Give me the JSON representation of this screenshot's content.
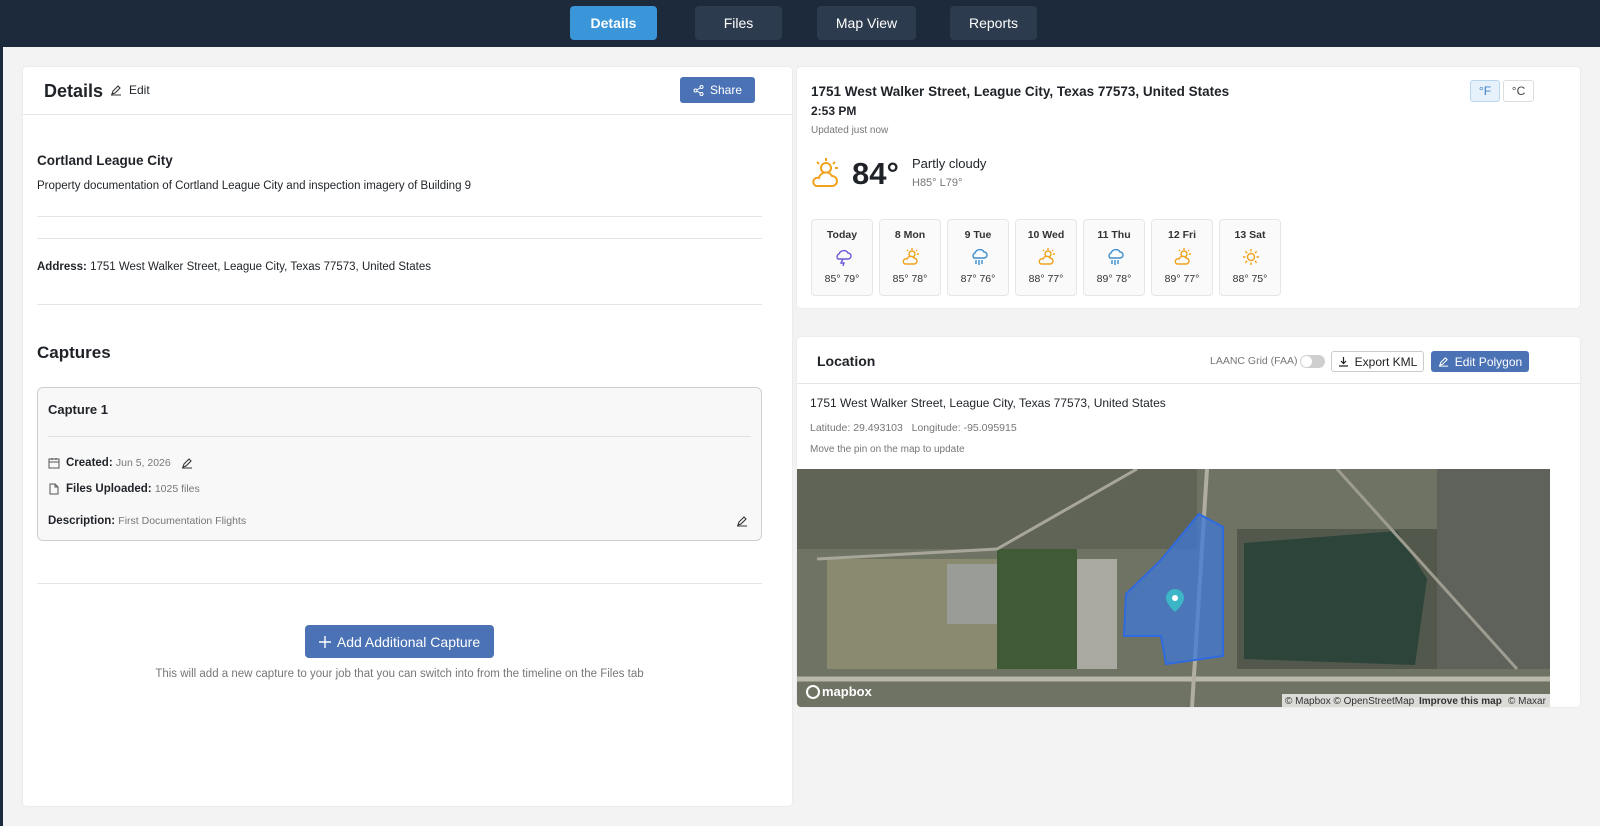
{
  "nav": {
    "tabs": [
      "Details",
      "Files",
      "Map View",
      "Reports"
    ]
  },
  "details": {
    "title": "Details",
    "edit": "Edit",
    "share": "Share",
    "project_name": "Cortland League City",
    "project_description": "Property documentation of Cortland League City and inspection imagery of Building 9",
    "address_label": "Address:",
    "address": "1751 West Walker Street, League City, Texas 77573, United States",
    "captures_title": "Captures",
    "capture": {
      "title": "Capture 1",
      "created_label": "Created:",
      "created": "Jun 5, 2026",
      "files_label": "Files Uploaded:",
      "files": "1025 files",
      "description_label": "Description:",
      "description": "First Documentation Flights"
    },
    "add_button": "Add Additional Capture",
    "add_hint": "This will add a new capture to your job that you can switch into from the timeline on the Files tab"
  },
  "weather": {
    "address": "1751 West Walker Street, League City, Texas 77573, United States",
    "time": "2:53 PM",
    "updated": "Updated just now",
    "units": [
      "°F",
      "°C"
    ],
    "temperature": "84°",
    "condition": "Partly cloudy",
    "high_low": "H85° L79°",
    "forecast": [
      {
        "day": "Today",
        "temps": "85° 79°"
      },
      {
        "day": "8 Mon",
        "temps": "85° 78°"
      },
      {
        "day": "9 Tue",
        "temps": "87° 76°"
      },
      {
        "day": "10 Wed",
        "temps": "88° 77°"
      },
      {
        "day": "11 Thu",
        "temps": "89° 78°"
      },
      {
        "day": "12 Fri",
        "temps": "89° 77°"
      },
      {
        "day": "13 Sat",
        "temps": "88° 75°"
      }
    ]
  },
  "location": {
    "title": "Location",
    "laanc": "LAANC Grid (FAA)",
    "export": "Export KML",
    "edit_polygon": "Edit Polygon",
    "address": "1751 West Walker Street, League City, Texas 77573, United States",
    "latitude": "Latitude: 29.493103",
    "longitude": "Longitude: -95.095915",
    "hint": "Move the pin on the map to update",
    "map_brand": "mapbox",
    "attribution": [
      "© Mapbox © OpenStreetMap",
      "Improve this map",
      "© Maxar"
    ]
  }
}
